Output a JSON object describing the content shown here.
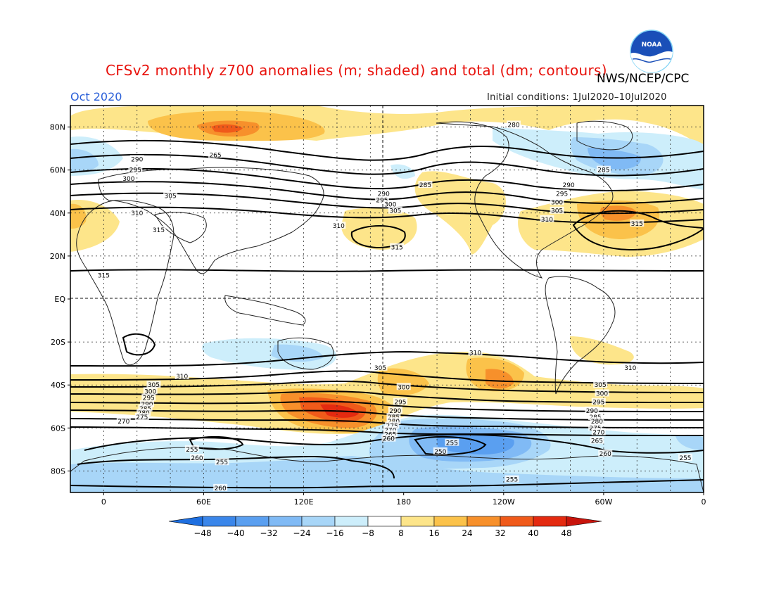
{
  "title": "CFSv2 monthly z700 anomalies (m; shaded) and total (dm; contours)",
  "agency": "NWS/NCEP/CPC",
  "valid_month": "Oct 2020",
  "init_conditions": "Initial conditions: 1Jul2020–10Jul2020",
  "logo_text": "NOAA",
  "axes": {
    "lat_labels": [
      "80N",
      "60N",
      "40N",
      "20N",
      "EQ",
      "20S",
      "40S",
      "60S",
      "80S"
    ],
    "lon_labels": [
      "0",
      "60E",
      "120E",
      "180",
      "120W",
      "60W",
      "0"
    ]
  },
  "colorbar": {
    "ticks": [
      "−48",
      "−40",
      "−32",
      "−24",
      "−16",
      "−8",
      "8",
      "16",
      "24",
      "32",
      "40",
      "48"
    ],
    "colors": [
      "#1e6fe0",
      "#3a86ea",
      "#5a9ff0",
      "#80baf5",
      "#a8d6f8",
      "#cdeefb",
      "#ffffff",
      "#fde58a",
      "#fbc24a",
      "#f7902b",
      "#f05a1a",
      "#e42a10",
      "#c8140c"
    ]
  },
  "contour_labels": [
    {
      "text": "280",
      "lon": 246,
      "lat": 81
    },
    {
      "text": "265",
      "lon": 67,
      "lat": 67
    },
    {
      "text": "290",
      "lon": 20,
      "lat": 65
    },
    {
      "text": "295",
      "lon": 19,
      "lat": 60
    },
    {
      "text": "300",
      "lon": 15,
      "lat": 56
    },
    {
      "text": "305",
      "lon": 40,
      "lat": 48
    },
    {
      "text": "310",
      "lon": 20,
      "lat": 40
    },
    {
      "text": "315",
      "lon": 33,
      "lat": 32
    },
    {
      "text": "315",
      "lon": 0,
      "lat": 11
    },
    {
      "text": "285",
      "lon": 193,
      "lat": 53
    },
    {
      "text": "290",
      "lon": 168,
      "lat": 49
    },
    {
      "text": "295",
      "lon": 167,
      "lat": 46
    },
    {
      "text": "300",
      "lon": 172,
      "lat": 44
    },
    {
      "text": "305",
      "lon": 175,
      "lat": 41
    },
    {
      "text": "310",
      "lon": 141,
      "lat": 34
    },
    {
      "text": "315",
      "lon": 176,
      "lat": 24
    },
    {
      "text": "285",
      "lon": 300,
      "lat": 60
    },
    {
      "text": "290",
      "lon": 279,
      "lat": 53
    },
    {
      "text": "295",
      "lon": 275,
      "lat": 49
    },
    {
      "text": "300",
      "lon": 272,
      "lat": 45
    },
    {
      "text": "305",
      "lon": 272,
      "lat": 41
    },
    {
      "text": "310",
      "lon": 266,
      "lat": 37
    },
    {
      "text": "315",
      "lon": 320,
      "lat": 35
    },
    {
      "text": "310",
      "lon": 223,
      "lat": -25
    },
    {
      "text": "310",
      "lon": 316,
      "lat": -32
    },
    {
      "text": "305",
      "lon": 166,
      "lat": -32
    },
    {
      "text": "310",
      "lon": 47,
      "lat": -36
    },
    {
      "text": "300",
      "lon": 180,
      "lat": -41
    },
    {
      "text": "305",
      "lon": 30,
      "lat": -40
    },
    {
      "text": "300",
      "lon": 28,
      "lat": -43
    },
    {
      "text": "295",
      "lon": 27,
      "lat": -46
    },
    {
      "text": "290",
      "lon": 26,
      "lat": -49
    },
    {
      "text": "285",
      "lon": 25,
      "lat": -51
    },
    {
      "text": "280",
      "lon": 24,
      "lat": -53
    },
    {
      "text": "275",
      "lon": 23,
      "lat": -55
    },
    {
      "text": "270",
      "lon": 12,
      "lat": -57
    },
    {
      "text": "295",
      "lon": 178,
      "lat": -48
    },
    {
      "text": "290",
      "lon": 175,
      "lat": -52
    },
    {
      "text": "285",
      "lon": 174,
      "lat": -55
    },
    {
      "text": "280",
      "lon": 174,
      "lat": -57
    },
    {
      "text": "275",
      "lon": 173,
      "lat": -59
    },
    {
      "text": "270",
      "lon": 172,
      "lat": -61
    },
    {
      "text": "265",
      "lon": 172,
      "lat": -63
    },
    {
      "text": "260",
      "lon": 171,
      "lat": -65
    },
    {
      "text": "305",
      "lon": 298,
      "lat": -40
    },
    {
      "text": "300",
      "lon": 299,
      "lat": -44
    },
    {
      "text": "295",
      "lon": 297,
      "lat": -48
    },
    {
      "text": "290",
      "lon": 293,
      "lat": -52
    },
    {
      "text": "285",
      "lon": 295,
      "lat": -55
    },
    {
      "text": "280",
      "lon": 296,
      "lat": -57
    },
    {
      "text": "275",
      "lon": 295,
      "lat": -60
    },
    {
      "text": "270",
      "lon": 297,
      "lat": -62
    },
    {
      "text": "265",
      "lon": 296,
      "lat": -66
    },
    {
      "text": "260",
      "lon": 301,
      "lat": -72
    },
    {
      "text": "255",
      "lon": 245,
      "lat": -84
    },
    {
      "text": "255",
      "lon": 209,
      "lat": -67
    },
    {
      "text": "250",
      "lon": 202,
      "lat": -71
    },
    {
      "text": "255",
      "lon": 53,
      "lat": -70
    },
    {
      "text": "260",
      "lon": 56,
      "lat": -74
    },
    {
      "text": "255",
      "lon": 71,
      "lat": -76
    },
    {
      "text": "260",
      "lon": 70,
      "lat": -88
    },
    {
      "text": "255",
      "lon": 349,
      "lat": -74
    }
  ]
}
